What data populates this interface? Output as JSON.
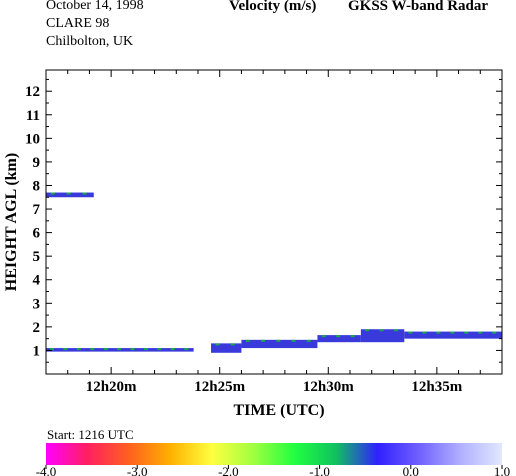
{
  "header": {
    "date": "October  14, 1998",
    "campaign": "CLARE 98",
    "site": "Chilbolton, UK",
    "quantity": "Velocity (m/s)",
    "instrument": "GKSS  W-band Radar"
  },
  "start_label": "Start: 1216 UTC",
  "colors": {
    "scale": [
      "#ff00ff",
      "#ff2060",
      "#ff6020",
      "#ffb000",
      "#ffff40",
      "#a0ff40",
      "#20ff40",
      "#10c060",
      "#3020ff",
      "#7060ff",
      "#b0b0ff",
      "#e0e8ff"
    ],
    "echo_main": "#3a3adc",
    "echo_green": "#1aa84a"
  },
  "chart_data": {
    "type": "heatmap",
    "title": "Velocity (m/s)",
    "xlabel": "TIME (UTC)",
    "ylabel": "HEIGHT AGL (km)",
    "xlim": [
      "12h17m",
      "12h38m"
    ],
    "ylim": [
      0,
      12.9
    ],
    "xticks": [
      {
        "label": "12h20m",
        "minute": 20
      },
      {
        "label": "12h25m",
        "minute": 25
      },
      {
        "label": "12h30m",
        "minute": 30
      },
      {
        "label": "12h35m",
        "minute": 35
      }
    ],
    "yticks": [
      1,
      2,
      3,
      4,
      5,
      6,
      7,
      8,
      9,
      10,
      11,
      12
    ],
    "colorbar": {
      "range": [
        -4.0,
        1.0
      ],
      "ticks": [
        "-4.0",
        "-3.0",
        "-2.0",
        "-1.0",
        "0.0",
        "1.0"
      ]
    },
    "echo_layers": [
      {
        "t_start": 17.0,
        "t_end": 19.2,
        "h_bottom": 7.5,
        "h_top": 7.7,
        "velocity": -0.3
      },
      {
        "t_start": 17.0,
        "t_end": 23.8,
        "h_bottom": 0.95,
        "h_top": 1.1,
        "velocity": -0.4
      },
      {
        "t_start": 24.6,
        "t_end": 26.0,
        "h_bottom": 0.9,
        "h_top": 1.3,
        "velocity": -0.4
      },
      {
        "t_start": 26.0,
        "t_end": 29.5,
        "h_bottom": 1.1,
        "h_top": 1.45,
        "velocity": -0.3
      },
      {
        "t_start": 29.5,
        "t_end": 31.5,
        "h_bottom": 1.35,
        "h_top": 1.65,
        "velocity": -0.3
      },
      {
        "t_start": 31.5,
        "t_end": 33.5,
        "h_bottom": 1.35,
        "h_top": 1.9,
        "velocity": -0.2
      },
      {
        "t_start": 33.5,
        "t_end": 38.0,
        "h_bottom": 1.5,
        "h_top": 1.8,
        "velocity": -0.3
      }
    ]
  }
}
